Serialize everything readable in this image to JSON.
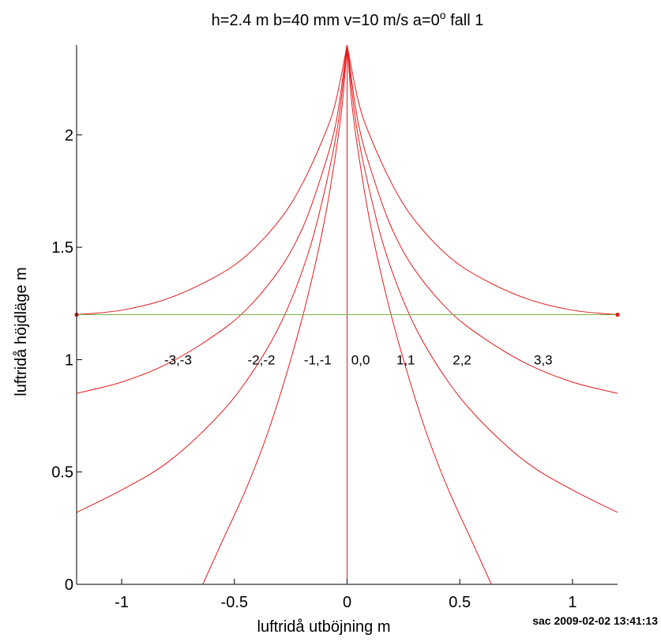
{
  "chart_data": {
    "type": "line",
    "title": "h=2.4 m  b=40 mm  v=10 m/s  a=0",
    "title_superscript": "o",
    "title_suffix": "  fall 1",
    "xlabel": "luftridå utböjning   m",
    "ylabel": "luftridå höjdläge   m",
    "xlim": [
      -1.2,
      1.2
    ],
    "ylim": [
      0,
      2.4
    ],
    "x_ticks": [
      -1,
      -0.5,
      0,
      0.5,
      1
    ],
    "x_tick_labels": [
      "-1",
      "-0.5",
      "0",
      "0.5",
      "1"
    ],
    "y_ticks": [
      0,
      0.5,
      1,
      1.5,
      2
    ],
    "y_tick_labels": [
      "0",
      "0.5",
      "1",
      "1.5",
      "2"
    ],
    "grid": false,
    "box": "left-axis-only",
    "colors": {
      "curves": "#e41a1c",
      "reference_line": "#7cb342",
      "axis": "#000000"
    },
    "reference_line": {
      "y": 1.2,
      "x": [
        -1.2,
        1.2
      ],
      "endpoints": [
        [
          -1.2,
          1.2
        ],
        [
          1.2,
          1.2
        ]
      ]
    },
    "series": [
      {
        "label": "-3,-3",
        "x": [
          -1.2,
          -1.0,
          -0.8,
          -0.6,
          -0.45,
          -0.3,
          -0.2,
          -0.1,
          -0.05,
          0
        ],
        "y": [
          1.2,
          1.22,
          1.27,
          1.36,
          1.46,
          1.62,
          1.78,
          2.0,
          2.15,
          2.4
        ]
      },
      {
        "label": "3,3",
        "x": [
          1.2,
          1.0,
          0.8,
          0.6,
          0.45,
          0.3,
          0.2,
          0.1,
          0.05,
          0
        ],
        "y": [
          1.2,
          1.22,
          1.27,
          1.36,
          1.46,
          1.62,
          1.78,
          2.0,
          2.15,
          2.4
        ]
      },
      {
        "label": "-2,-2",
        "x": [
          -1.2,
          -1.0,
          -0.8,
          -0.6,
          -0.45,
          -0.3,
          -0.2,
          -0.12,
          -0.05,
          0
        ],
        "y": [
          0.85,
          0.9,
          0.98,
          1.1,
          1.22,
          1.4,
          1.58,
          1.8,
          2.05,
          2.4
        ]
      },
      {
        "label": "2,2",
        "x": [
          1.2,
          1.0,
          0.8,
          0.6,
          0.45,
          0.3,
          0.2,
          0.12,
          0.05,
          0
        ],
        "y": [
          0.85,
          0.9,
          0.98,
          1.1,
          1.22,
          1.4,
          1.58,
          1.8,
          2.05,
          2.4
        ]
      },
      {
        "label": "-1,-1",
        "x": [
          -1.2,
          -1.0,
          -0.8,
          -0.6,
          -0.45,
          -0.3,
          -0.18,
          -0.1,
          -0.04,
          0
        ],
        "y": [
          0.32,
          0.42,
          0.54,
          0.72,
          0.9,
          1.15,
          1.45,
          1.75,
          2.05,
          2.4
        ]
      },
      {
        "label": "1,1",
        "x": [
          1.2,
          1.0,
          0.8,
          0.6,
          0.45,
          0.3,
          0.18,
          0.1,
          0.04,
          0
        ],
        "y": [
          0.32,
          0.42,
          0.54,
          0.72,
          0.9,
          1.15,
          1.45,
          1.75,
          2.05,
          2.4
        ]
      },
      {
        "label": "-1,-1 inner",
        "x": [
          -0.64,
          -0.55,
          -0.45,
          -0.35,
          -0.25,
          -0.17,
          -0.1,
          -0.05,
          -0.02,
          0
        ],
        "y": [
          0,
          0.2,
          0.42,
          0.68,
          1.0,
          1.3,
          1.62,
          1.92,
          2.15,
          2.4
        ]
      },
      {
        "label": "1,1 inner",
        "x": [
          0.64,
          0.55,
          0.45,
          0.35,
          0.25,
          0.17,
          0.1,
          0.05,
          0.02,
          0
        ],
        "y": [
          0,
          0.2,
          0.42,
          0.68,
          1.0,
          1.3,
          1.62,
          1.92,
          2.15,
          2.4
        ]
      },
      {
        "label": "0,0",
        "x": [
          0,
          0
        ],
        "y": [
          0,
          2.4
        ]
      }
    ],
    "annotations": [
      {
        "text": "-3,-3",
        "x": -0.75,
        "y": 1.0
      },
      {
        "text": "-2,-2",
        "x": -0.38,
        "y": 1.0
      },
      {
        "text": "-1,-1",
        "x": -0.13,
        "y": 1.0
      },
      {
        "text": "0,0",
        "x": 0.06,
        "y": 1.0
      },
      {
        "text": "1,1",
        "x": 0.26,
        "y": 1.0
      },
      {
        "text": "2,2",
        "x": 0.51,
        "y": 1.0
      },
      {
        "text": "3,3",
        "x": 0.87,
        "y": 1.0
      }
    ]
  },
  "footer": {
    "stamp": "sac  2009-02-02 13:41:13"
  }
}
